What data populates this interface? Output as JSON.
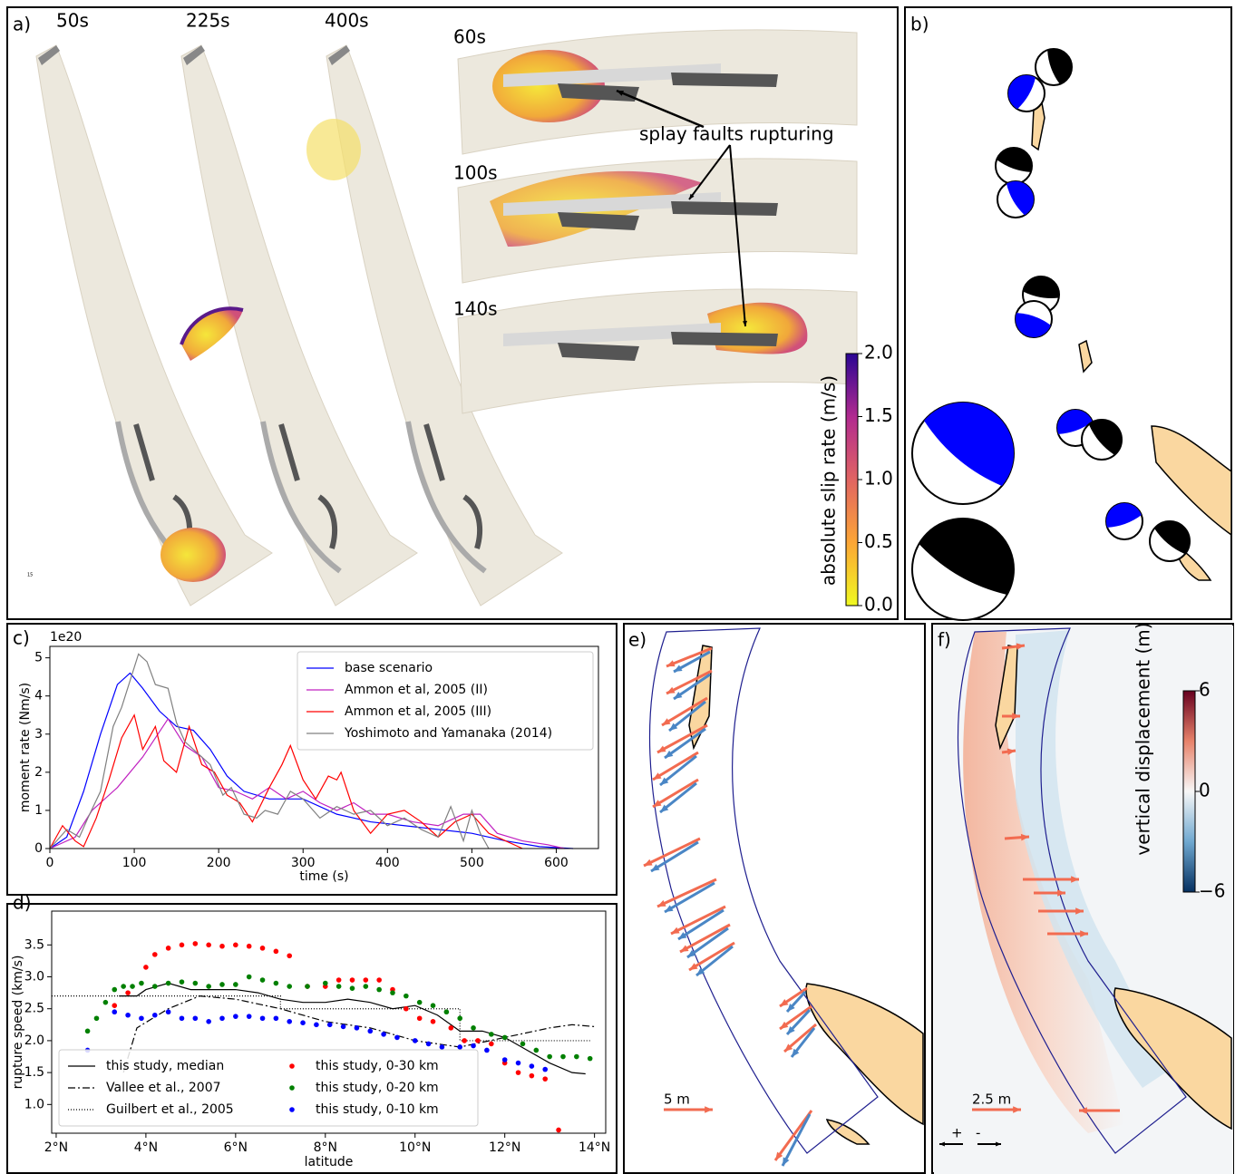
{
  "panels": {
    "a": {
      "label": "a)",
      "snapshots": [
        "50s",
        "225s",
        "400s"
      ],
      "splay_snapshots": [
        "60s",
        "100s",
        "140s"
      ],
      "annotation": "splay faults rupturing",
      "small_text": "15",
      "colorbar": {
        "label": "absolute  slip rate (m/s)",
        "ticks": [
          "0.0",
          "0.5",
          "1.0",
          "1.5",
          "2.0"
        ]
      }
    },
    "b": {
      "label": "b)"
    },
    "e": {
      "label": "e)",
      "scale": "5 m"
    },
    "f": {
      "label": "f)",
      "scale": "2.5 m",
      "sign_plus": "+",
      "sign_minus": "-",
      "colorbar": {
        "label": "vertical displacement (m)",
        "ticks": [
          "6",
          "0",
          "−6"
        ]
      }
    }
  },
  "chart_data": [
    {
      "type": "line",
      "panel_label": "c)",
      "offset_text": "1e20",
      "xlabel": "time (s)",
      "ylabel": "moment rate (Nm/s)",
      "xlim": [
        0,
        650
      ],
      "ylim": [
        0,
        5.3
      ],
      "xticks": [
        0,
        100,
        200,
        300,
        400,
        500,
        600
      ],
      "yticks": [
        0,
        1,
        2,
        3,
        4,
        5
      ],
      "legend": "upper right",
      "legend_ncol": 1,
      "series": [
        {
          "name": "base scenario",
          "color": "#0000ff",
          "linestyle": "solid",
          "x": [
            0,
            20,
            40,
            60,
            80,
            95,
            110,
            130,
            150,
            170,
            190,
            210,
            230,
            260,
            300,
            340,
            380,
            420,
            460,
            500,
            540,
            580,
            620
          ],
          "values": [
            0,
            0.3,
            1.5,
            3,
            4.3,
            4.6,
            4.2,
            3.6,
            3.2,
            3.1,
            2.6,
            1.9,
            1.5,
            1.3,
            1.3,
            0.9,
            0.7,
            0.6,
            0.5,
            0.4,
            0.2,
            0.05,
            0
          ]
        },
        {
          "name": "Ammon et al, 2005 (II)",
          "color": "#c020c0",
          "linestyle": "solid",
          "x": [
            0,
            30,
            50,
            80,
            110,
            140,
            160,
            180,
            200,
            220,
            240,
            260,
            280,
            300,
            320,
            340,
            360,
            380,
            400,
            430,
            460,
            490,
            510,
            530,
            560,
            590,
            610
          ],
          "values": [
            0,
            0.3,
            1,
            1.6,
            2.4,
            3.4,
            2.7,
            2.4,
            1.6,
            1.5,
            1.3,
            1.6,
            1.3,
            1.5,
            1.2,
            1.0,
            1.2,
            0.9,
            0.9,
            0.7,
            0.6,
            0.9,
            0.9,
            0.4,
            0.2,
            0.1,
            0
          ]
        },
        {
          "name": "Ammon et al, 2005 (III)",
          "color": "#ff0000",
          "linestyle": "solid",
          "x": [
            0,
            15,
            30,
            40,
            55,
            70,
            85,
            100,
            110,
            125,
            135,
            150,
            165,
            180,
            195,
            210,
            225,
            240,
            260,
            275,
            285,
            300,
            315,
            330,
            340,
            345,
            360,
            380,
            400,
            420,
            440,
            460,
            480,
            500,
            520,
            540,
            560
          ],
          "values": [
            0,
            0.6,
            0.2,
            0.05,
            0.8,
            1.8,
            2.9,
            3.5,
            2.6,
            3.2,
            2.3,
            2.0,
            3.2,
            2.2,
            2.0,
            1.4,
            1.2,
            0.7,
            1.6,
            2.2,
            2.7,
            1.8,
            1.3,
            1.9,
            1.8,
            2.0,
            1.0,
            0.4,
            0.9,
            1.0,
            0.7,
            0.3,
            0.7,
            0.9,
            0.4,
            0.2,
            0
          ]
        },
        {
          "name": "Yoshimoto and Yamanaka (2014)",
          "color": "#808080",
          "linestyle": "solid",
          "x": [
            0,
            20,
            35,
            45,
            60,
            75,
            85,
            95,
            105,
            115,
            125,
            140,
            150,
            160,
            175,
            190,
            205,
            215,
            230,
            245,
            255,
            270,
            285,
            300,
            320,
            340,
            360,
            380,
            400,
            420,
            440,
            460,
            475,
            490,
            500,
            510,
            520
          ],
          "values": [
            0,
            0.5,
            0.3,
            0.8,
            1.5,
            3.2,
            3.7,
            4.4,
            5.1,
            4.9,
            4.3,
            4.2,
            3.3,
            2.8,
            2.5,
            2.2,
            1.4,
            1.6,
            0.9,
            0.8,
            1.0,
            0.9,
            1.5,
            1.3,
            0.8,
            1.1,
            0.9,
            1.0,
            0.6,
            0.8,
            0.5,
            0.3,
            1.1,
            0.2,
            1.0,
            0.4,
            0
          ]
        }
      ]
    },
    {
      "type": "line",
      "panel_label": "d)",
      "xlabel": "latitude",
      "ylabel": "rupture speed (km/s)",
      "xlim": [
        1.9,
        14.25
      ],
      "ylim": [
        0.55,
        4.03
      ],
      "xticks": [
        {
          "value": 2,
          "label": "2°N"
        },
        {
          "value": 4,
          "label": "4°N"
        },
        {
          "value": 6,
          "label": "6°N"
        },
        {
          "value": 8,
          "label": "8°N"
        },
        {
          "value": 10,
          "label": "10°N"
        },
        {
          "value": 12,
          "label": "12°N"
        },
        {
          "value": 14,
          "label": "14°N"
        }
      ],
      "yticks": [
        {
          "value": 1,
          "label": "1.0"
        },
        {
          "value": 1.5,
          "label": "1.5"
        },
        {
          "value": 2,
          "label": "2.0"
        },
        {
          "value": 2.5,
          "label": "2.5"
        },
        {
          "value": 3,
          "label": "3.0"
        },
        {
          "value": 3.5,
          "label": "3.5"
        }
      ],
      "legend": "lower left",
      "legend_ncol": 2,
      "series": [
        {
          "name": "this study, median",
          "color": "#000000",
          "linestyle": "solid",
          "x": [
            3.4,
            3.8,
            4.0,
            4.5,
            5,
            5.5,
            6,
            6.5,
            7,
            7.5,
            8,
            8.5,
            9,
            9.5,
            10,
            10.5,
            11,
            11.5,
            12,
            12.5,
            13,
            13.5,
            13.8
          ],
          "values": [
            2.7,
            2.7,
            2.8,
            2.9,
            2.8,
            2.8,
            2.8,
            2.75,
            2.65,
            2.6,
            2.6,
            2.65,
            2.6,
            2.5,
            2.55,
            2.4,
            2.15,
            2.15,
            2.05,
            1.85,
            1.65,
            1.5,
            1.48
          ]
        },
        {
          "name": "Vallee et al., 2007",
          "color": "#000000",
          "linestyle": "dashdot",
          "x": [
            3.5,
            3.8,
            4.5,
            5.2,
            6,
            7,
            8,
            9,
            10,
            11,
            12,
            13,
            13.5,
            14
          ],
          "values": [
            1.5,
            2.2,
            2.5,
            2.7,
            2.65,
            2.5,
            2.3,
            2.2,
            2.0,
            1.9,
            2.05,
            2.2,
            2.25,
            2.22
          ]
        },
        {
          "name": "Guilbert et al., 2005",
          "color": "#000000",
          "linestyle": "dotted",
          "x": [
            1.9,
            7.0,
            7.0,
            11.0,
            11.0,
            13.9
          ],
          "values": [
            2.7,
            2.7,
            2.5,
            2.5,
            2.0,
            2.0
          ]
        },
        {
          "name": "this study, 0-30 km",
          "color": "#ff0000",
          "mode": "markers",
          "x": [
            3.3,
            3.6,
            4.0,
            4.2,
            4.5,
            4.8,
            5.1,
            5.4,
            5.7,
            6.0,
            6.3,
            6.6,
            6.9,
            7.2,
            7.6,
            8.0,
            8.3,
            8.6,
            8.9,
            9.2,
            9.5,
            9.8,
            10.1,
            10.4,
            10.8,
            11.1,
            11.4,
            11.7,
            12.0,
            12.3,
            12.6,
            12.9,
            13.2
          ],
          "values": [
            2.55,
            2.75,
            3.15,
            3.35,
            3.45,
            3.5,
            3.52,
            3.5,
            3.48,
            3.5,
            3.48,
            3.45,
            3.4,
            3.33,
            2.85,
            2.85,
            2.95,
            2.95,
            2.95,
            2.95,
            2.8,
            2.5,
            2.35,
            2.3,
            2.2,
            2.0,
            2.0,
            1.95,
            1.65,
            1.5,
            1.45,
            1.4,
            0.6
          ]
        },
        {
          "name": "this study, 0-20 km",
          "color": "#008000",
          "mode": "markers",
          "x": [
            2.7,
            2.9,
            3.1,
            3.3,
            3.5,
            3.7,
            3.9,
            4.2,
            4.5,
            4.8,
            5.1,
            5.4,
            5.7,
            6.0,
            6.3,
            6.6,
            6.9,
            7.2,
            7.6,
            8.0,
            8.3,
            8.6,
            8.9,
            9.2,
            9.5,
            9.8,
            10.1,
            10.4,
            10.7,
            11.0,
            11.3,
            11.7,
            12.0,
            12.4,
            12.7,
            13.0,
            13.3,
            13.6,
            13.9
          ],
          "values": [
            2.15,
            2.35,
            2.6,
            2.8,
            2.85,
            2.85,
            2.9,
            2.85,
            2.9,
            2.92,
            2.9,
            2.85,
            2.88,
            2.88,
            3.0,
            2.95,
            2.9,
            2.85,
            2.85,
            2.9,
            2.85,
            2.82,
            2.85,
            2.8,
            2.75,
            2.7,
            2.6,
            2.55,
            2.45,
            2.35,
            2.2,
            2.1,
            2.05,
            1.95,
            1.85,
            1.75,
            1.75,
            1.75,
            1.72
          ]
        },
        {
          "name": "this study, 0-10 km",
          "color": "#0000ff",
          "mode": "markers",
          "x": [
            2.7,
            3.3,
            3.6,
            3.9,
            4.2,
            4.5,
            4.8,
            5.1,
            5.4,
            5.7,
            6.0,
            6.3,
            6.6,
            6.9,
            7.2,
            7.5,
            7.8,
            8.1,
            8.4,
            8.7,
            9.0,
            9.3,
            9.6,
            10.0,
            10.3,
            10.6,
            11.0,
            11.3,
            11.6,
            12.0,
            12.3,
            12.6,
            12.9
          ],
          "values": [
            1.85,
            2.45,
            2.4,
            2.35,
            2.4,
            2.45,
            2.35,
            2.35,
            2.3,
            2.35,
            2.38,
            2.38,
            2.35,
            2.35,
            2.3,
            2.28,
            2.25,
            2.25,
            2.22,
            2.2,
            2.15,
            2.1,
            2.05,
            2.0,
            1.95,
            1.9,
            1.9,
            1.92,
            1.85,
            1.7,
            1.65,
            1.6,
            1.55
          ]
        }
      ]
    }
  ]
}
